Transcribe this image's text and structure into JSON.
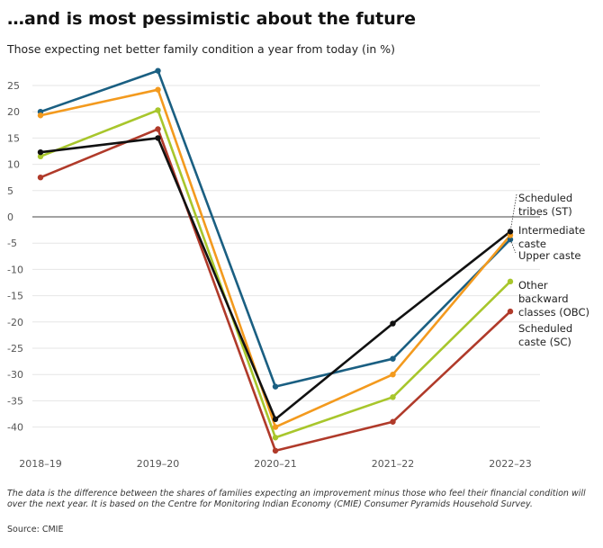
{
  "title": "…and is most pessimistic about the future",
  "subtitle": "Those expecting net better family condition a year from today (in %)",
  "note_line1": "The data is the difference between the shares of families expecting an improvement minus those who feel their financial condition will",
  "note_line2": "over the next year. It is based on the Centre for Monitoring Indian Economy (CMIE) Consumer Pyramids Household Survey.",
  "source": "Source: CMIE",
  "chart_data": {
    "type": "line",
    "x": [
      "2018–19",
      "2019–20",
      "2020–21",
      "2021–22",
      "2022–23"
    ],
    "ylim": [
      -45,
      28
    ],
    "yticks": [
      25,
      20,
      15,
      10,
      5,
      0,
      -5,
      -10,
      -15,
      -20,
      -25,
      -30,
      -35,
      -40
    ],
    "grid": true,
    "series": [
      {
        "name": "Upper caste",
        "color": "#1a5f82",
        "values": [
          20,
          27.8,
          -32.3,
          -27,
          -4.3
        ],
        "label_lines": [
          "Upper caste"
        ]
      },
      {
        "name": "Intermediate caste",
        "color": "#f39a1e",
        "values": [
          19.3,
          24.2,
          -40,
          -30,
          -3.5
        ],
        "label_lines": [
          "Intermediate",
          "caste"
        ]
      },
      {
        "name": "Other backward classes (OBC)",
        "color": "#a8c62c",
        "values": [
          11.5,
          20.3,
          -42,
          -34.3,
          -12.3
        ],
        "label_lines": [
          "Other",
          "backward",
          "classes (OBC)"
        ]
      },
      {
        "name": "Scheduled caste (SC)",
        "color": "#b03a2a",
        "values": [
          7.5,
          16.7,
          -44.5,
          -39,
          -18
        ],
        "label_lines": [
          "Scheduled",
          "caste (SC)"
        ]
      },
      {
        "name": "Scheduled tribes (ST)",
        "color": "#111111",
        "values": [
          12.3,
          15,
          -38.5,
          -20.3,
          -2.8
        ],
        "label_lines": [
          "Scheduled",
          "tribes (ST)"
        ]
      }
    ]
  }
}
